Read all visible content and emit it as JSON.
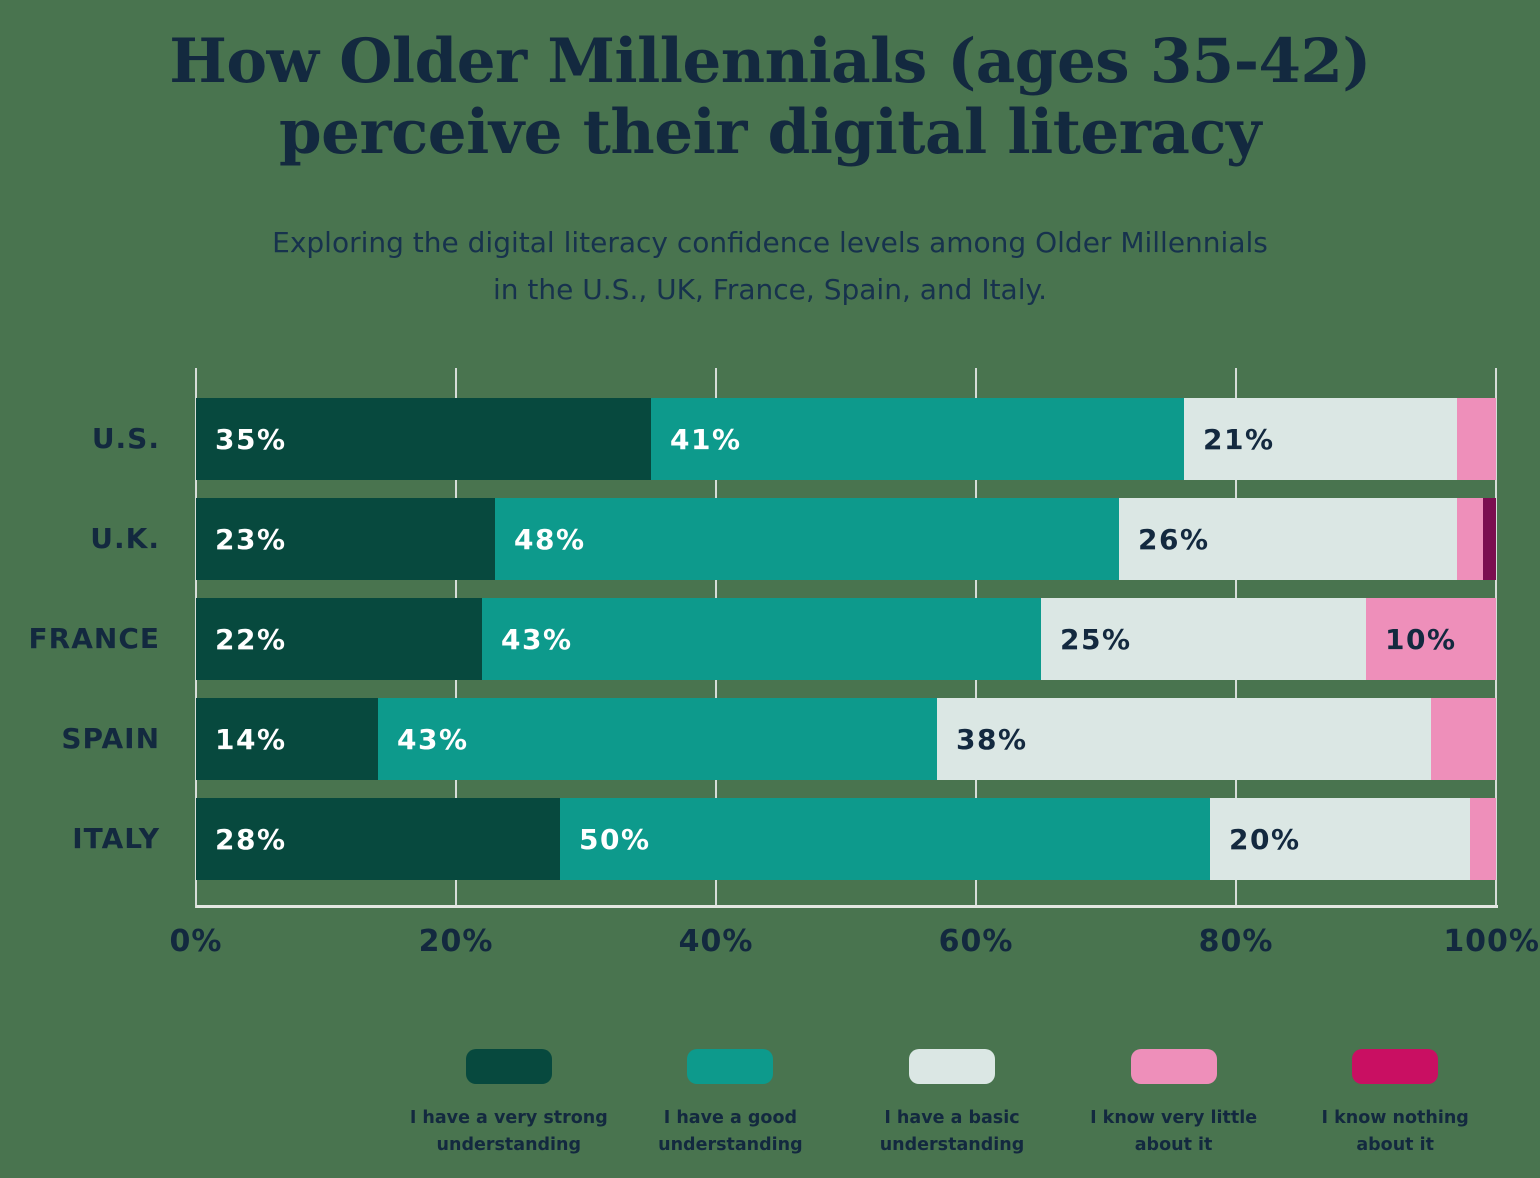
{
  "title": {
    "line1": "How Older Millennials (ages 35-42)",
    "line2": "perceive their digital literacy"
  },
  "subtitle": {
    "line1": "Exploring the digital literacy confidence levels among Older Millennials",
    "line2": "in the U.S., UK, France, Spain, and Italy."
  },
  "colors": {
    "background": "#49744F",
    "text_navy": "#13293F",
    "gridline": "#D6DDD8",
    "axis_line": "#E3E7E2",
    "very_strong": "#07493E",
    "good": "#0D9A8C",
    "basic": "#DBE7E4",
    "very_little": "#EE8FBA",
    "nothing_bar": "#7B0E50",
    "nothing_legend": "#C90F62"
  },
  "chart_data": {
    "type": "bar",
    "orientation": "horizontal",
    "stacked": true,
    "title": "How Older Millennials (ages 35-42) perceive their digital literacy",
    "categories": [
      "U.S.",
      "U.K.",
      "FRANCE",
      "SPAIN",
      "ITALY"
    ],
    "series": [
      {
        "name": "I have a very strong understanding",
        "color": "#07493E",
        "label_color": "#FFFFFF",
        "values": [
          35,
          23,
          22,
          14,
          28
        ]
      },
      {
        "name": "I have a good understanding",
        "color": "#0D9A8C",
        "label_color": "#FFFFFF",
        "values": [
          41,
          48,
          43,
          43,
          50
        ]
      },
      {
        "name": "I have a basic understanding",
        "color": "#DBE7E4",
        "label_color": "#13293F",
        "values": [
          21,
          26,
          25,
          38,
          20
        ]
      },
      {
        "name": "I know very little about it",
        "color": "#EE8FBA",
        "label_color": "#13293F",
        "values": [
          3,
          2,
          10,
          5,
          2
        ]
      },
      {
        "name": "I know nothing about it",
        "color": "#7B0E50",
        "label_color": "#FFFFFF",
        "values": [
          0,
          1,
          0,
          0,
          0
        ]
      }
    ],
    "x_ticks": [
      "0%",
      "20%",
      "40%",
      "60%",
      "80%",
      "100%"
    ],
    "xlim": [
      0,
      100
    ],
    "grid": true,
    "value_label_suffix": "%",
    "value_label_min": 10,
    "legend_position": "bottom"
  },
  "legend": {
    "items": [
      {
        "label": "I have a very strong understanding",
        "lines": [
          "I have a very strong",
          "understanding"
        ],
        "color": "#07493E"
      },
      {
        "label": "I have a good understanding",
        "lines": [
          "I have a good",
          "understanding"
        ],
        "color": "#0D9A8C"
      },
      {
        "label": "I have a basic understanding",
        "lines": [
          "I have a basic",
          "understanding"
        ],
        "color": "#DBE7E4"
      },
      {
        "label": "I know very little about it",
        "lines": [
          "I know very little",
          "about it"
        ],
        "color": "#EE8FBA"
      },
      {
        "label": "I know nothing about it",
        "lines": [
          "I know nothing",
          "about it"
        ],
        "color": "#C90F62"
      }
    ]
  }
}
